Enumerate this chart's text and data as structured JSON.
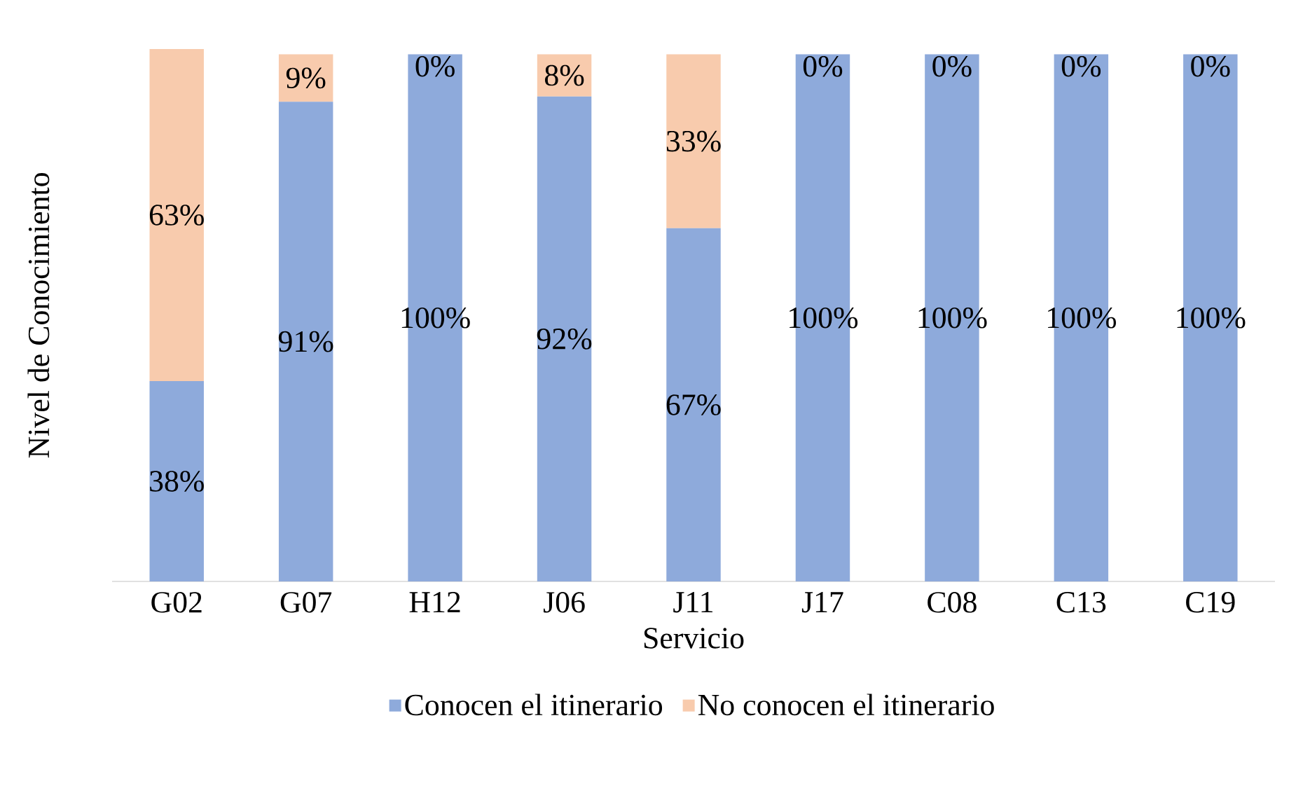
{
  "chart_data": {
    "type": "bar",
    "stacked": true,
    "xlabel": "Servicio",
    "ylabel": "Nivel de Conocimiento",
    "categories": [
      "G02",
      "G07",
      "H12",
      "J06",
      "J11",
      "J17",
      "C08",
      "C13",
      "C19"
    ],
    "series": [
      {
        "name": "Conocen el itinerario",
        "color": "#8eaadb",
        "values": [
          38,
          91,
          100,
          92,
          67,
          100,
          100,
          100,
          100
        ],
        "value_labels": [
          "38%",
          "91%",
          "100%",
          "92%",
          "67%",
          "100%",
          "100%",
          "100%",
          "100%"
        ]
      },
      {
        "name": "No conocen el itinerario",
        "color": "#f8cbad",
        "values": [
          63,
          9,
          0,
          8,
          33,
          0,
          0,
          0,
          0
        ],
        "value_labels": [
          "63%",
          "9%",
          "0%",
          "8%",
          "33%",
          "0%",
          "0%",
          "0%",
          "0%"
        ]
      }
    ],
    "legend": "bottom"
  }
}
